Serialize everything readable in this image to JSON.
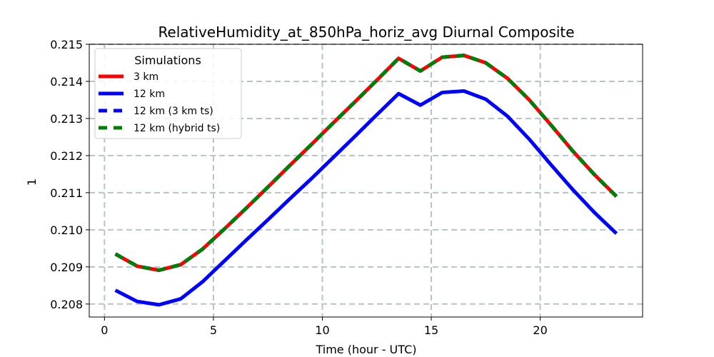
{
  "chart_data": {
    "type": "line",
    "title": "RelativeHumidity_at_850hPa_horiz_avg Diurnal Composite",
    "xlabel": "Time (hour - UTC)",
    "ylabel": "1",
    "xlim": [
      -0.7,
      24.7
    ],
    "ylim": [
      0.20765,
      0.215
    ],
    "xticks": [
      0,
      5,
      10,
      15,
      20
    ],
    "xtick_labels": [
      "0",
      "5",
      "10",
      "15",
      "20"
    ],
    "yticks": [
      0.208,
      0.209,
      0.21,
      0.211,
      0.212,
      0.213,
      0.214,
      0.215
    ],
    "ytick_labels": [
      "0.208",
      "0.209",
      "0.210",
      "0.211",
      "0.212",
      "0.213",
      "0.214",
      "0.215"
    ],
    "grid": true,
    "legend": {
      "title": "Simulations",
      "position": "upper-left"
    },
    "x": [
      0.5,
      1.5,
      2.5,
      3.5,
      4.5,
      5.5,
      6.5,
      7.5,
      8.5,
      9.5,
      10.5,
      11.5,
      12.5,
      13.5,
      14.5,
      15.5,
      16.5,
      17.5,
      18.5,
      19.5,
      20.5,
      21.5,
      22.5,
      23.5
    ],
    "series": [
      {
        "name": "3 km",
        "color": "#ff0000",
        "style": "solid",
        "values": [
          0.20935,
          0.20902,
          0.20891,
          0.20906,
          0.20948,
          0.21002,
          0.21058,
          0.21115,
          0.21173,
          0.2123,
          0.21288,
          0.21345,
          0.21403,
          0.21462,
          0.21428,
          0.21465,
          0.2147,
          0.2145,
          0.21408,
          0.2135,
          0.21282,
          0.21212,
          0.21148,
          0.2109
        ]
      },
      {
        "name": "12 km",
        "color": "#0000ff",
        "style": "solid",
        "values": [
          0.20837,
          0.20807,
          0.20798,
          0.20814,
          0.2086,
          0.20916,
          0.20972,
          0.21027,
          0.21083,
          0.21138,
          0.21195,
          0.21252,
          0.2131,
          0.21367,
          0.21336,
          0.2137,
          0.21374,
          0.21352,
          0.21306,
          0.21244,
          0.21175,
          0.21108,
          0.21046,
          0.2099
        ]
      },
      {
        "name": "12 km (3 km ts)",
        "color": "#0000ff",
        "style": "dashed",
        "values": [
          0.20935,
          0.20902,
          0.20891,
          0.20906,
          0.20948,
          0.21002,
          0.21058,
          0.21115,
          0.21173,
          0.2123,
          0.21288,
          0.21345,
          0.21403,
          0.21462,
          0.21428,
          0.21465,
          0.2147,
          0.2145,
          0.21408,
          0.2135,
          0.21282,
          0.21212,
          0.21148,
          0.2109
        ]
      },
      {
        "name": "12 km (hybrid ts)",
        "color": "#008000",
        "style": "dashed",
        "values": [
          0.20935,
          0.20902,
          0.20891,
          0.20906,
          0.20948,
          0.21002,
          0.21058,
          0.21115,
          0.21173,
          0.2123,
          0.21288,
          0.21345,
          0.21403,
          0.21462,
          0.21428,
          0.21465,
          0.2147,
          0.2145,
          0.21408,
          0.2135,
          0.21282,
          0.21212,
          0.21148,
          0.2109
        ]
      }
    ]
  }
}
